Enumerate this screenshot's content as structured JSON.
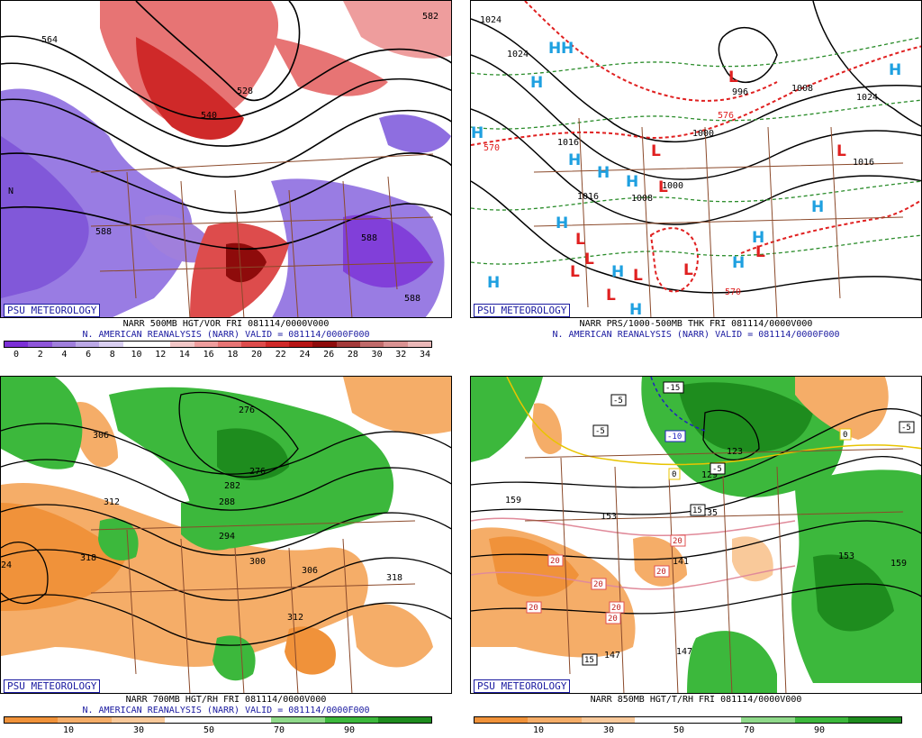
{
  "badge": "PSU METEOROLOGY",
  "panels": {
    "p1": {
      "caption1": "NARR 500MB HGT/VOR FRI 081114/0000V000",
      "caption2": "N. AMERICAN REANALYSIS (NARR) VALID = 081114/0000F000",
      "colorbar_ticks": [
        "0",
        "2",
        "4",
        "6",
        "8",
        "10",
        "12",
        "14",
        "16",
        "18",
        "20",
        "22",
        "24",
        "26",
        "28",
        "30",
        "32",
        "34"
      ],
      "colorbar_colors": [
        "#7b2fd6",
        "#8e55d9",
        "#a07fdc",
        "#bba8e6",
        "#d9cff1",
        "#ffffff",
        "#ffffff",
        "#f2c7c7",
        "#ee9d9d",
        "#e77474",
        "#dd4c4c",
        "#cf2929",
        "#b61515",
        "#8e0b0b",
        "#a43a3a",
        "#c06a6a",
        "#d99292",
        "#eab8b8"
      ],
      "map_labels": [
        "564",
        "582",
        "540",
        "528",
        "588",
        "588",
        "588",
        "N"
      ]
    },
    "p2": {
      "caption1": "NARR PRS/1000-500MB THK FRI 081114/0000V000",
      "caption2": "N. AMERICAN REANALYSIS (NARR) VALID = 081114/0000F000",
      "map_labels": [
        "1024",
        "1016",
        "996",
        "1008",
        "1024",
        "1000",
        "1024",
        "1016",
        "1016",
        "1008",
        "1000",
        "570",
        "570",
        "576",
        "570",
        "H",
        "L"
      ]
    },
    "p3": {
      "caption1": "NARR 700MB HGT/RH FRI 081114/0000V000",
      "caption2": "N. AMERICAN REANALYSIS (NARR) VALID = 081114/0000F000",
      "colorbar_ticks": [
        "10",
        "30",
        "50",
        "70",
        "90"
      ],
      "map_labels": [
        "276",
        "306",
        "312",
        "282",
        "288",
        "294",
        "276",
        "318",
        "300",
        "306",
        "318",
        "312",
        "24"
      ]
    },
    "p4": {
      "caption1": "NARR 850MB HGT/T/RH FRI 081114/0000V000",
      "caption2": "",
      "colorbar_ticks": [
        "10",
        "30",
        "50",
        "70",
        "90"
      ],
      "map_labels": [
        "159",
        "153",
        "147",
        "147",
        "141",
        "135",
        "129",
        "123",
        "153",
        "159",
        "-15",
        "-10",
        "-5",
        "-5",
        "-5",
        "-5",
        "0",
        "0",
        "15",
        "15",
        "20",
        "20",
        "20",
        "20",
        "20",
        "20",
        "20"
      ]
    }
  },
  "rh_colorbar_colors": [
    "#f0923a",
    "#f5ad68",
    "#f9c99a",
    "#ffffff",
    "#ffffff",
    "#8fd98a",
    "#3cb83c",
    "#1e8c1e"
  ]
}
